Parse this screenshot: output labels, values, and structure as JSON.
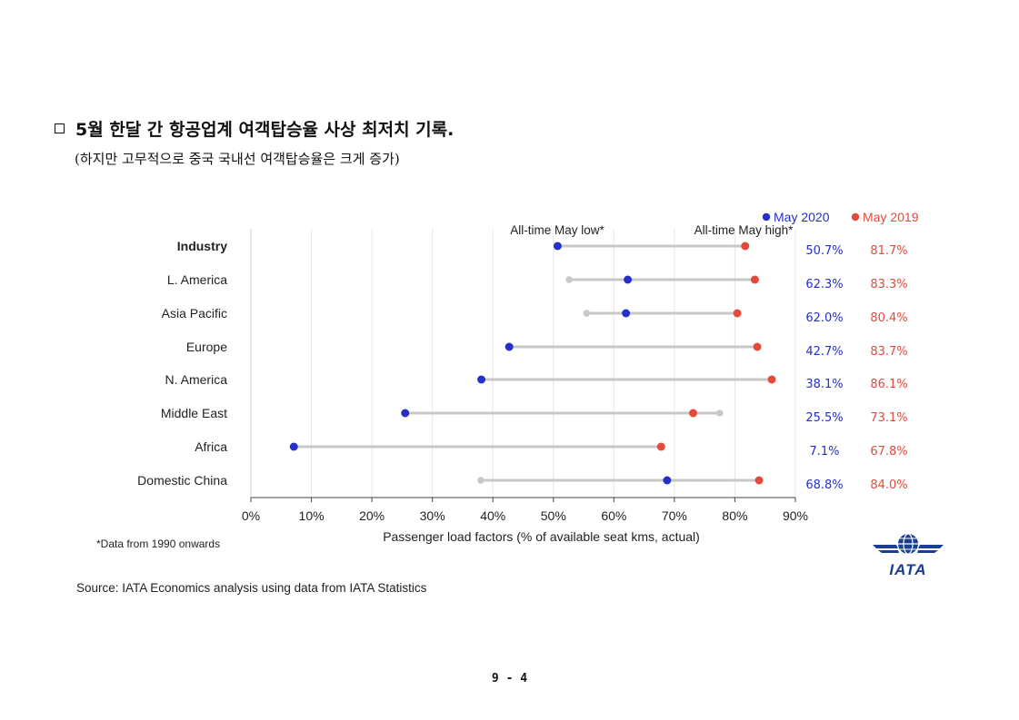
{
  "heading": "5월 한달 간 항공업계 여객탑승율 사상 최저치 기록.",
  "subheading": "(하지만 고무적으로 중국 국내선 여객탑승율은 크게 증가)",
  "chart_data": {
    "type": "dumbbell",
    "xlabel": "Passenger load factors (% of available seat kms, actual)",
    "xlim": [
      0,
      90
    ],
    "x_ticks": [
      "0%",
      "10%",
      "20%",
      "30%",
      "40%",
      "50%",
      "60%",
      "70%",
      "80%",
      "90%"
    ],
    "grid": true,
    "legend": {
      "position": "top-right",
      "entries": [
        "May 2020",
        "May 2019"
      ]
    },
    "markers": {
      "low": "All-time May low*",
      "high": "All-time May high*"
    },
    "colors": {
      "may2020": "#2430c9",
      "may2019": "#e34a3c",
      "range": "#c8c8c8"
    },
    "categories": [
      "Industry",
      "L. America",
      "Asia Pacific",
      "Europe",
      "N. America",
      "Middle East",
      "Africa",
      "Domestic China"
    ],
    "series": [
      {
        "name": "May 2020",
        "values": [
          50.7,
          62.3,
          62.0,
          42.7,
          38.1,
          25.5,
          7.1,
          68.8
        ],
        "labels": [
          "50.7%",
          "62.3%",
          "62.0%",
          "42.7%",
          "38.1%",
          "25.5%",
          "7.1%",
          "68.8%"
        ]
      },
      {
        "name": "May 2019",
        "values": [
          81.7,
          83.3,
          80.4,
          83.7,
          86.1,
          73.1,
          67.8,
          84.0
        ],
        "labels": [
          "81.7%",
          "83.3%",
          "80.4%",
          "83.7%",
          "86.1%",
          "73.1%",
          "67.8%",
          "84.0%"
        ]
      }
    ],
    "all_time_low": [
      null,
      52.6,
      55.5,
      null,
      null,
      null,
      null,
      38.0
    ],
    "all_time_high": [
      null,
      null,
      null,
      null,
      null,
      77.5,
      null,
      null
    ]
  },
  "footnote": "*Data from 1990 onwards",
  "source": "Source: IATA Economics analysis using data from IATA Statistics",
  "logo": {
    "text": "IATA",
    "icon": "globe-wings-icon"
  },
  "page_number": "9 - 4"
}
